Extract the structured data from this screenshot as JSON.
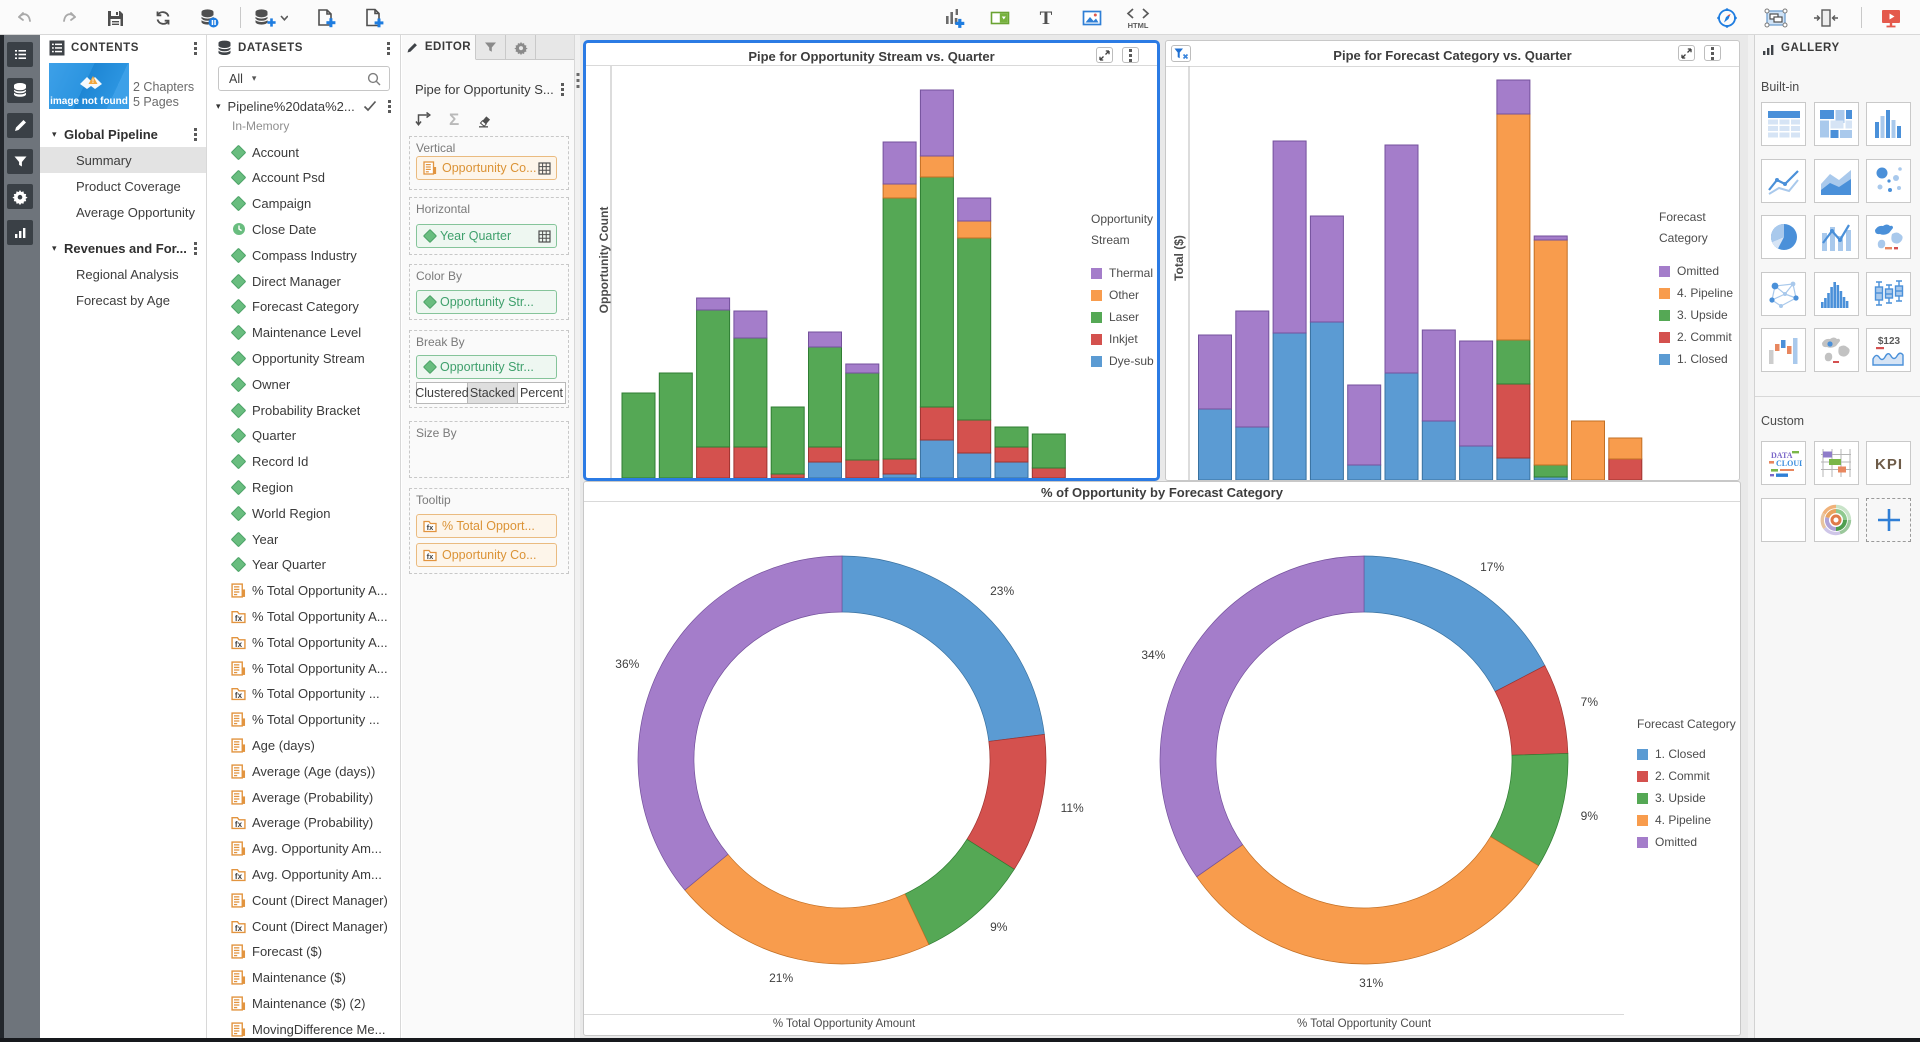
{
  "colors": {
    "accent_blue": "#2b7be4",
    "series": {
      "blue": "#5b9bd3",
      "red": "#d4514e",
      "green": "#55a855",
      "orange": "#f89c4d",
      "purple": "#a47dca"
    },
    "series_border": {
      "blue": "#39719f",
      "red": "#9e322f",
      "green": "#2f7d32",
      "orange": "#c26f24",
      "purple": "#74519c"
    },
    "dimension_green": "#69bd7f",
    "measure_orange": "#e2943f"
  },
  "toolbar": {
    "left_icons": [
      "undo",
      "redo",
      "save",
      "refresh",
      "refresh-data",
      "divider",
      "add-data",
      "duplicate-page",
      "add-page"
    ],
    "mid_icons": [
      "add-object",
      "add-control",
      "add-text",
      "add-image",
      "add-html"
    ],
    "right_icons": [
      "explore",
      "layout",
      "fit-width",
      "divider",
      "present"
    ],
    "html_icon_label": "HTML"
  },
  "left_rail": [
    "contents",
    "data",
    "edit",
    "filter",
    "settings",
    "objects"
  ],
  "contents": {
    "title": "CONTENTS",
    "thumbnail_text": "image not found",
    "chapters": "2 Chapters",
    "pages": "5 Pages",
    "sections": [
      {
        "label": "Global Pipeline",
        "items": [
          "Summary",
          "Product Coverage",
          "Average Opportunity"
        ],
        "selected": "Summary"
      },
      {
        "label": "Revenues and For...",
        "items": [
          "Regional Analysis",
          "Forecast by Age"
        ],
        "selected": ""
      }
    ]
  },
  "datasets": {
    "title": "DATASETS",
    "filter_value": "All",
    "dataset_name": "Pipeline%20data%2...",
    "dataset_sub": "In-Memory",
    "fields": [
      {
        "label": "Account",
        "icon": "dimension"
      },
      {
        "label": "Account Psd",
        "icon": "dimension"
      },
      {
        "label": "Campaign",
        "icon": "dimension"
      },
      {
        "label": "Close Date",
        "icon": "date"
      },
      {
        "label": "Compass Industry",
        "icon": "dimension"
      },
      {
        "label": "Direct Manager",
        "icon": "dimension"
      },
      {
        "label": "Forecast Category",
        "icon": "dimension"
      },
      {
        "label": "Maintenance Level",
        "icon": "dimension"
      },
      {
        "label": "Opportunity Stream",
        "icon": "dimension"
      },
      {
        "label": "Owner",
        "icon": "dimension"
      },
      {
        "label": "Probability Bracket",
        "icon": "dimension"
      },
      {
        "label": "Quarter",
        "icon": "dimension"
      },
      {
        "label": "Record Id",
        "icon": "dimension"
      },
      {
        "label": "Region",
        "icon": "dimension"
      },
      {
        "label": "World Region",
        "icon": "dimension"
      },
      {
        "label": "Year",
        "icon": "dimension"
      },
      {
        "label": "Year Quarter",
        "icon": "dimension"
      },
      {
        "label": "% Total Opportunity A...",
        "icon": "measure"
      },
      {
        "label": "% Total Opportunity A...",
        "icon": "formula"
      },
      {
        "label": "% Total Opportunity A...",
        "icon": "formula"
      },
      {
        "label": "% Total Opportunity A...",
        "icon": "measure"
      },
      {
        "label": "% Total Opportunity ...",
        "icon": "formula"
      },
      {
        "label": "% Total Opportunity ...",
        "icon": "measure"
      },
      {
        "label": "Age (days)",
        "icon": "measure"
      },
      {
        "label": "Average (Age (days))",
        "icon": "measure"
      },
      {
        "label": "Average (Probability)",
        "icon": "measure"
      },
      {
        "label": "Average (Probability)",
        "icon": "formula"
      },
      {
        "label": "Avg. Opportunity Am...",
        "icon": "measure"
      },
      {
        "label": "Avg. Opportunity Am...",
        "icon": "formula"
      },
      {
        "label": "Count (Direct Manager)",
        "icon": "measure"
      },
      {
        "label": "Count (Direct Manager)",
        "icon": "formula"
      },
      {
        "label": "Forecast ($)",
        "icon": "measure"
      },
      {
        "label": "Maintenance ($)",
        "icon": "measure"
      },
      {
        "label": "Maintenance ($) (2)",
        "icon": "measure"
      },
      {
        "label": "MovingDifference Me...",
        "icon": "measure"
      }
    ]
  },
  "editor": {
    "tab_label": "EDITOR",
    "object_title": "Pipe for Opportunity S...",
    "sections": {
      "vertical_label": "Vertical",
      "vertical_value": "Opportunity Co...",
      "horizontal_label": "Horizontal",
      "horizontal_value": "Year Quarter",
      "colorby_label": "Color By",
      "colorby_value": "Opportunity Str...",
      "breakby_label": "Break By",
      "breakby_value": "Opportunity Str...",
      "toggle": [
        "Clustered",
        "Stacked",
        "Percent"
      ],
      "toggle_selected": "Stacked",
      "sizeby_label": "Size By",
      "tooltip_label": "Tooltip",
      "tooltip_values": [
        "% Total Opport...",
        "Opportunity Co..."
      ]
    }
  },
  "gallery": {
    "title": "GALLERY",
    "builtin_label": "Built-in",
    "custom_label": "Custom",
    "builtin_tiles": [
      "table",
      "crosstab",
      "bar",
      "line",
      "area",
      "bubble",
      "pie",
      "dualaxis",
      "geo-color",
      "network",
      "histogram",
      "box",
      "waterfall",
      "geo-gray",
      "kpi-spark"
    ],
    "custom_tiles": [
      "wordcloud",
      "gantt",
      "kpi-text",
      "blank",
      "sunburst",
      "add"
    ],
    "kpi_spark_text": "$123",
    "kpi_text": "KPI",
    "wordcloud_words": [
      "DATA",
      "CLOUD"
    ]
  },
  "chart_data": [
    {
      "type": "bar",
      "stacked": true,
      "title": "Pipe for Opportunity Stream vs. Quarter",
      "xlabel": "",
      "ylabel": "Opportunity Count",
      "legend_title": "Opportunity Stream",
      "legend_items": [
        "Thermal",
        "Other",
        "Laser",
        "Inkjet",
        "Dye-sub"
      ],
      "legend_colors": [
        "purple",
        "orange",
        "green",
        "red",
        "blue"
      ],
      "x_tick_labels_visible": false,
      "y_tick_labels_visible": false,
      "note": "axis unlabeled in screenshot; segment values are estimated pixel heights, bars clipped at panel bottom",
      "bars": [
        [
          [
            "green",
            85
          ]
        ],
        [
          [
            "green",
            105
          ]
        ],
        [
          [
            "red",
            31
          ],
          [
            "green",
            137
          ],
          [
            "purple",
            12
          ]
        ],
        [
          [
            "red",
            31
          ],
          [
            "green",
            109
          ],
          [
            "purple",
            27
          ]
        ],
        [
          [
            "red",
            4
          ],
          [
            "green",
            67
          ]
        ],
        [
          [
            "blue",
            16
          ],
          [
            "red",
            15
          ],
          [
            "green",
            100
          ],
          [
            "purple",
            15
          ]
        ],
        [
          [
            "red",
            18
          ],
          [
            "green",
            87
          ],
          [
            "purple",
            9
          ]
        ],
        [
          [
            "blue",
            4
          ],
          [
            "red",
            15
          ],
          [
            "green",
            261
          ],
          [
            "orange",
            14
          ],
          [
            "purple",
            42
          ]
        ],
        [
          [
            "blue",
            38
          ],
          [
            "red",
            33
          ],
          [
            "green",
            230
          ],
          [
            "orange",
            21
          ],
          [
            "purple",
            66
          ]
        ],
        [
          [
            "blue",
            25
          ],
          [
            "red",
            33
          ],
          [
            "green",
            182
          ],
          [
            "orange",
            17
          ],
          [
            "purple",
            23
          ]
        ],
        [
          [
            "blue",
            16
          ],
          [
            "red",
            15
          ],
          [
            "green",
            20
          ]
        ],
        [
          [
            "red",
            10
          ],
          [
            "green",
            34
          ]
        ]
      ]
    },
    {
      "type": "bar",
      "stacked": true,
      "title": "Pipe for Forecast Category vs. Quarter",
      "xlabel": "",
      "ylabel": "Total ($)",
      "legend_title": "Forecast Category",
      "legend_items": [
        "Omitted",
        "4. Pipeline",
        "3. Upside",
        "2. Commit",
        "1. Closed"
      ],
      "legend_colors": [
        "purple",
        "orange",
        "green",
        "red",
        "blue"
      ],
      "x_tick_labels_visible": false,
      "y_tick_labels_visible": false,
      "has_filter_badge": true,
      "note": "axis unlabeled in screenshot; segment values are estimated pixel heights, bars clipped at panel bottom",
      "bars": [
        [
          [
            "blue",
            71
          ],
          [
            "purple",
            74
          ]
        ],
        [
          [
            "blue",
            53
          ],
          [
            "purple",
            116
          ]
        ],
        [
          [
            "blue",
            147
          ],
          [
            "purple",
            192
          ]
        ],
        [
          [
            "blue",
            158
          ],
          [
            "purple",
            106
          ]
        ],
        [
          [
            "blue",
            15
          ],
          [
            "purple",
            80
          ]
        ],
        [
          [
            "blue",
            107
          ],
          [
            "purple",
            228
          ]
        ],
        [
          [
            "blue",
            59
          ],
          [
            "purple",
            91
          ]
        ],
        [
          [
            "blue",
            34
          ],
          [
            "purple",
            105
          ]
        ],
        [
          [
            "blue",
            22
          ],
          [
            "red",
            74
          ],
          [
            "green",
            44
          ],
          [
            "orange",
            226
          ],
          [
            "purple",
            34
          ]
        ],
        [
          [
            "blue",
            3
          ],
          [
            "green",
            12
          ],
          [
            "orange",
            225
          ],
          [
            "purple",
            4
          ]
        ],
        [
          [
            "orange",
            59
          ]
        ],
        [
          [
            "red",
            21
          ],
          [
            "orange",
            21
          ]
        ]
      ]
    },
    {
      "type": "donut",
      "title": "% of Opportunity by Forecast Category",
      "legend_title": "Forecast Category",
      "categories": [
        "1. Closed",
        "2. Commit",
        "3. Upside",
        "4. Pipeline",
        "Omitted"
      ],
      "category_colors": [
        "blue",
        "red",
        "green",
        "orange",
        "purple"
      ],
      "charts": [
        {
          "caption": "% Total Opportunity Amount",
          "values": [
            23,
            11,
            9,
            21,
            36
          ],
          "labels": [
            "23%",
            "11%",
            "9%",
            "21%",
            "36%"
          ]
        },
        {
          "caption": "% Total Opportunity Count",
          "values": [
            17,
            7,
            9,
            31,
            34
          ],
          "labels": [
            "17%",
            "7%",
            "9%",
            "31%",
            "34%"
          ]
        }
      ]
    }
  ]
}
